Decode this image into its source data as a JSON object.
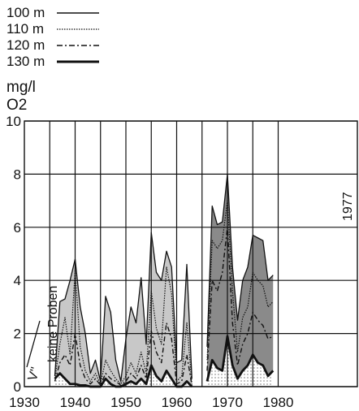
{
  "chart_data": {
    "type": "area",
    "ylabel_unit": "mg/l",
    "ylabel_substance": "O2",
    "xlim": [
      1930,
      1981
    ],
    "ylim": [
      0,
      10
    ],
    "xticks": [
      1930,
      1940,
      1950,
      1960,
      1970,
      1980
    ],
    "xtick_labels": [
      "1930",
      "1940",
      "1950",
      "1960",
      "1970",
      "1980"
    ],
    "yticks": [
      0,
      2,
      4,
      6,
      8,
      10
    ],
    "ytick_labels": [
      "0",
      "2",
      "4",
      "6",
      "8",
      "10"
    ],
    "grid": true,
    "legend_position": "top-left",
    "annotations": {
      "no_samples": "keine Proben",
      "no_samples_mark": "V''",
      "year_mark": "1977"
    },
    "colors": {
      "band_early": "#c8c8c8",
      "band_late": "#8a8a8a",
      "line": "#111111"
    },
    "series": [
      {
        "name": "100 m",
        "style": "solid-thin",
        "x": [
          1936,
          1937,
          1938,
          1939,
          1940,
          1941,
          1942,
          1943,
          1944,
          1945,
          1946,
          1947,
          1948,
          1949,
          1950,
          1951,
          1952,
          1953,
          1954,
          1955,
          1956,
          1957,
          1958,
          1959,
          1960,
          1961,
          1962,
          1963,
          1966,
          1967,
          1968,
          1969,
          1970,
          1971,
          1972,
          1973,
          1974,
          1975,
          1976,
          1977,
          1978,
          1979
        ],
        "values": [
          0.4,
          3.2,
          3.3,
          4.0,
          4.8,
          3.0,
          2.0,
          0.5,
          1.0,
          0.2,
          3.4,
          2.8,
          1.0,
          0.2,
          1.8,
          3.0,
          2.4,
          4.1,
          1.6,
          5.8,
          4.3,
          4.0,
          5.1,
          4.5,
          0.9,
          1.0,
          4.6,
          0.3,
          1.5,
          6.8,
          6.1,
          6.2,
          8.0,
          4.5,
          2.5,
          4.0,
          4.5,
          5.7,
          5.6,
          5.5,
          4.0,
          4.2
        ]
      },
      {
        "name": "110 m",
        "style": "dotted",
        "x": [
          1936,
          1937,
          1938,
          1939,
          1940,
          1941,
          1942,
          1943,
          1944,
          1945,
          1946,
          1947,
          1948,
          1949,
          1950,
          1951,
          1952,
          1953,
          1954,
          1955,
          1956,
          1957,
          1958,
          1959,
          1960,
          1961,
          1962,
          1963,
          1966,
          1967,
          1968,
          1969,
          1970,
          1971,
          1972,
          1973,
          1974,
          1975,
          1976,
          1977,
          1978,
          1979
        ],
        "values": [
          0.3,
          1.6,
          2.6,
          1.2,
          4.4,
          1.5,
          0.6,
          0.2,
          0.5,
          0.1,
          1.0,
          0.6,
          0.3,
          0.1,
          0.4,
          0.9,
          0.5,
          1.3,
          0.5,
          3.6,
          2.2,
          1.6,
          4.5,
          3.5,
          0.2,
          0.4,
          2.4,
          0.1,
          1.0,
          5.5,
          5.2,
          5.5,
          7.0,
          3.6,
          1.3,
          2.6,
          3.0,
          4.3,
          4.0,
          3.8,
          3.0,
          3.2
        ]
      },
      {
        "name": "120 m",
        "style": "dashdot",
        "x": [
          1936,
          1937,
          1938,
          1939,
          1940,
          1941,
          1942,
          1943,
          1944,
          1945,
          1946,
          1947,
          1948,
          1949,
          1950,
          1951,
          1952,
          1953,
          1954,
          1955,
          1956,
          1957,
          1958,
          1959,
          1960,
          1961,
          1962,
          1963,
          1966,
          1967,
          1968,
          1969,
          1970,
          1971,
          1972,
          1973,
          1974,
          1975,
          1976,
          1977,
          1978,
          1979
        ],
        "values": [
          0.2,
          0.9,
          1.2,
          0.8,
          2.0,
          0.8,
          0.3,
          0.1,
          0.3,
          0.05,
          0.5,
          0.3,
          0.2,
          0.05,
          0.2,
          0.5,
          0.3,
          0.8,
          0.3,
          2.1,
          1.3,
          0.9,
          2.4,
          1.8,
          0.1,
          0.2,
          1.2,
          0.05,
          0.6,
          4.0,
          3.6,
          4.3,
          6.0,
          2.4,
          0.8,
          1.6,
          2.0,
          2.8,
          2.5,
          2.3,
          1.8,
          1.9
        ]
      },
      {
        "name": "130 m",
        "style": "solid-thick",
        "x": [
          1936,
          1937,
          1938,
          1939,
          1940,
          1941,
          1942,
          1943,
          1944,
          1945,
          1946,
          1947,
          1948,
          1949,
          1950,
          1951,
          1952,
          1953,
          1954,
          1955,
          1956,
          1957,
          1958,
          1959,
          1960,
          1961,
          1962,
          1963,
          1966,
          1967,
          1968,
          1969,
          1970,
          1971,
          1972,
          1973,
          1974,
          1975,
          1976,
          1977,
          1978,
          1979
        ],
        "values": [
          0.3,
          0.5,
          0.3,
          0.1,
          0.1,
          0.05,
          0.05,
          0,
          0,
          0,
          0.3,
          0.1,
          0,
          0,
          0.1,
          0.2,
          0.1,
          0.3,
          0.1,
          0.8,
          0.4,
          0.2,
          0.6,
          0.3,
          0,
          0,
          0.2,
          0,
          0.2,
          1.0,
          0.7,
          0.6,
          1.9,
          0.8,
          0.3,
          0.6,
          0.8,
          1.2,
          0.9,
          0.8,
          0.4,
          0.6
        ]
      }
    ]
  }
}
